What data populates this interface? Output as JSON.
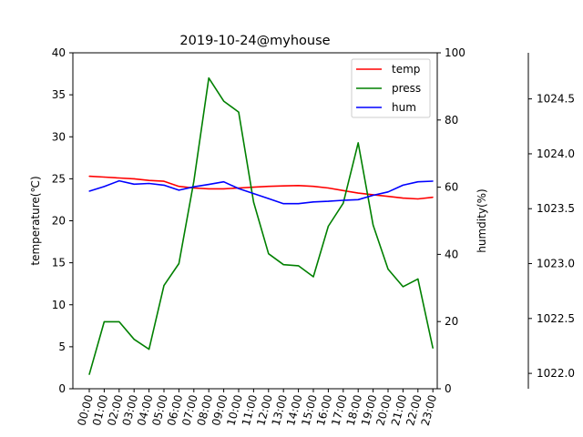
{
  "chart_data": {
    "type": "line",
    "title": "2019-10-24@myhouse",
    "xlabel": "",
    "categories": [
      "00:00",
      "01:00",
      "02:00",
      "03:00",
      "04:00",
      "05:00",
      "06:00",
      "07:00",
      "08:00",
      "09:00",
      "10:00",
      "11:00",
      "12:00",
      "13:00",
      "14:00",
      "15:00",
      "16:00",
      "17:00",
      "18:00",
      "19:00",
      "20:00",
      "21:00",
      "22:00",
      "23:00"
    ],
    "axes": {
      "temp": {
        "label": "temperature(℃)",
        "lim": [
          0,
          40
        ],
        "ticks": [
          0,
          5,
          10,
          15,
          20,
          25,
          30,
          35,
          40
        ]
      },
      "hum": {
        "label": "humdity(%)",
        "lim": [
          0,
          100
        ],
        "ticks": [
          0,
          20,
          40,
          60,
          80,
          100
        ]
      },
      "press": {
        "label": "",
        "lim": [
          1021.86,
          1024.92
        ],
        "ticks": [
          1022.0,
          1022.5,
          1023.0,
          1023.5,
          1024.0,
          1024.5
        ],
        "tick_labels": [
          "1022.0",
          "1022.5",
          "1023.0",
          "1023.5",
          "1024.0",
          "1024.5"
        ]
      }
    },
    "series": [
      {
        "name": "temp",
        "axis": "temp",
        "color": "#ff0000",
        "values": [
          25.3,
          25.2,
          25.1,
          25.0,
          24.8,
          24.7,
          24.1,
          23.9,
          23.8,
          23.8,
          23.9,
          24.0,
          24.1,
          24.15,
          24.2,
          24.1,
          23.9,
          23.6,
          23.3,
          23.1,
          22.9,
          22.7,
          22.6,
          22.8
        ]
      },
      {
        "name": "press",
        "axis": "press",
        "color": "#008000",
        "values": [
          1021.99,
          1022.47,
          1022.47,
          1022.31,
          1022.22,
          1022.8,
          1023.0,
          1023.75,
          1024.69,
          1024.48,
          1024.38,
          1023.56,
          1023.09,
          1022.99,
          1022.98,
          1022.88,
          1023.34,
          1023.55,
          1024.1,
          1023.35,
          1022.95,
          1022.79,
          1022.86,
          1022.23
        ]
      },
      {
        "name": "hum",
        "axis": "hum",
        "color": "#0000ff",
        "values": [
          58.8,
          60.2,
          61.9,
          60.9,
          61.1,
          60.6,
          59.1,
          60.1,
          60.8,
          61.6,
          59.6,
          58.1,
          56.6,
          55.1,
          55.1,
          55.6,
          55.8,
          56.1,
          56.3,
          57.6,
          58.6,
          60.6,
          61.6,
          61.8
        ]
      }
    ],
    "legend": {
      "placement": "top-right",
      "items": [
        "temp",
        "press",
        "hum"
      ]
    },
    "grid": false
  }
}
